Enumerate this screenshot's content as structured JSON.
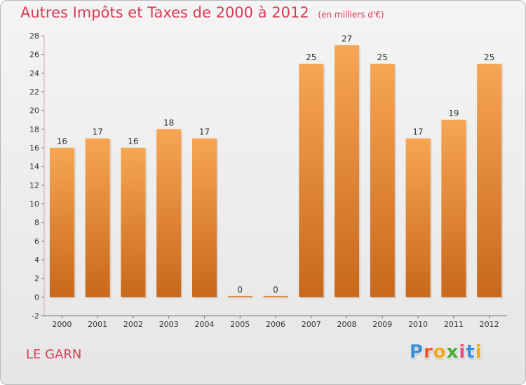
{
  "chart_data": {
    "type": "bar",
    "title": "Autres Impôts et Taxes de 2000 à 2012",
    "subtitle": "(en milliers d'€)",
    "categories": [
      "2000",
      "2001",
      "2002",
      "2003",
      "2004",
      "2005",
      "2006",
      "2007",
      "2008",
      "2009",
      "2010",
      "2011",
      "2012"
    ],
    "values": [
      16,
      17,
      16,
      18,
      17,
      0,
      0,
      25,
      27,
      25,
      17,
      19,
      25
    ],
    "ylim": [
      -2,
      28
    ],
    "yticks": [
      -2,
      0,
      2,
      4,
      6,
      8,
      10,
      12,
      14,
      16,
      18,
      20,
      22,
      24,
      26,
      28
    ],
    "grid": false,
    "bar_color_light": "#f7a653",
    "bar_color_dark": "#c8681a"
  },
  "footer": {
    "place": "LE GARN",
    "logo": [
      "P",
      "r",
      "o",
      "x",
      "i",
      "t",
      "i"
    ],
    "logo_colors": [
      "#3a8fd9",
      "#e85a2a",
      "#f0a81a",
      "#4cae3a",
      "#e84a7a",
      "#3a8fd9",
      "#f0a81a"
    ]
  }
}
